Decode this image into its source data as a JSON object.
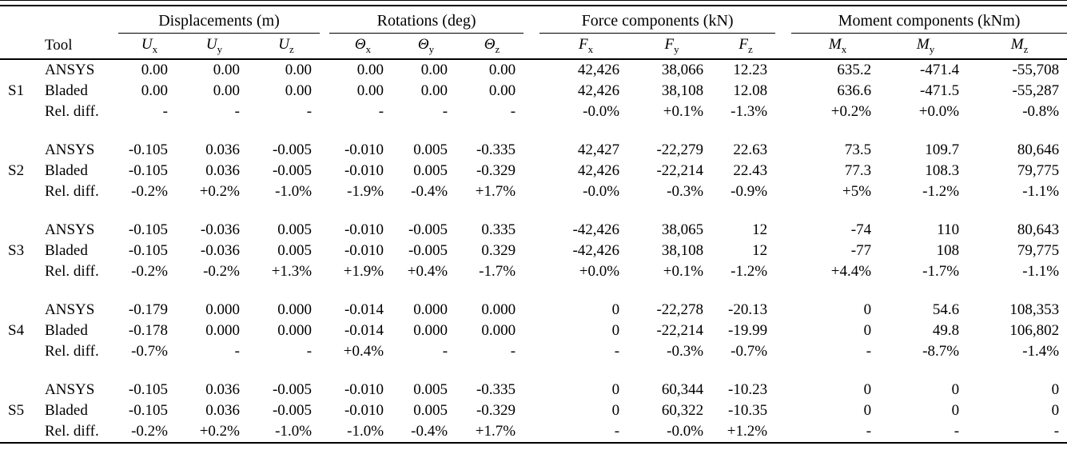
{
  "page": {
    "background_color": "#ffffff",
    "text_color": "#000000",
    "rule_color": "#000000"
  },
  "table": {
    "tool_header": "Tool",
    "col_groups": [
      {
        "label": "Displacements (m)"
      },
      {
        "label": "Rotations (deg)"
      },
      {
        "label": "Force components (kN)"
      },
      {
        "label": "Moment components (kNm)"
      }
    ],
    "sub_headers": [
      {
        "name": "u-x",
        "base": "U",
        "sub": "x"
      },
      {
        "name": "u-y",
        "base": "U",
        "sub": "y"
      },
      {
        "name": "u-z",
        "base": "U",
        "sub": "z"
      },
      {
        "name": "theta-x",
        "base": "Θ",
        "sub": "x"
      },
      {
        "name": "theta-y",
        "base": "Θ",
        "sub": "y"
      },
      {
        "name": "theta-z",
        "base": "Θ",
        "sub": "z"
      },
      {
        "name": "f-x",
        "base": "F",
        "sub": "x"
      },
      {
        "name": "f-y",
        "base": "F",
        "sub": "y"
      },
      {
        "name": "f-z",
        "base": "F",
        "sub": "z"
      },
      {
        "name": "m-x",
        "base": "M",
        "sub": "x"
      },
      {
        "name": "m-y",
        "base": "M",
        "sub": "y"
      },
      {
        "name": "m-z",
        "base": "M",
        "sub": "z"
      }
    ],
    "groups": [
      {
        "id": "S1",
        "rows": [
          {
            "tool": "ANSYS",
            "values": [
              "0.00",
              "0.00",
              "0.00",
              "0.00",
              "0.00",
              "0.00",
              "42,426",
              "38,066",
              "12.23",
              "635.2",
              "-471.4",
              "-55,708"
            ]
          },
          {
            "tool": "Bladed",
            "values": [
              "0.00",
              "0.00",
              "0.00",
              "0.00",
              "0.00",
              "0.00",
              "42,426",
              "38,108",
              "12.08",
              "636.6",
              "-471.5",
              "-55,287"
            ]
          },
          {
            "tool": "Rel. diff.",
            "values": [
              "-",
              "-",
              "-",
              "-",
              "-",
              "-",
              "-0.0%",
              "+0.1%",
              "-1.3%",
              "+0.2%",
              "+0.0%",
              "-0.8%"
            ]
          }
        ]
      },
      {
        "id": "S2",
        "rows": [
          {
            "tool": "ANSYS",
            "values": [
              "-0.105",
              "0.036",
              "-0.005",
              "-0.010",
              "0.005",
              "-0.335",
              "42,427",
              "-22,279",
              "22.63",
              "73.5",
              "109.7",
              "80,646"
            ]
          },
          {
            "tool": "Bladed",
            "values": [
              "-0.105",
              "0.036",
              "-0.005",
              "-0.010",
              "0.005",
              "-0.329",
              "42,426",
              "-22,214",
              "22.43",
              "77.3",
              "108.3",
              "79,775"
            ]
          },
          {
            "tool": "Rel. diff.",
            "values": [
              "-0.2%",
              "+0.2%",
              "-1.0%",
              "-1.9%",
              "-0.4%",
              "+1.7%",
              "-0.0%",
              "-0.3%",
              "-0.9%",
              "+5%",
              "-1.2%",
              "-1.1%"
            ]
          }
        ]
      },
      {
        "id": "S3",
        "rows": [
          {
            "tool": "ANSYS",
            "values": [
              "-0.105",
              "-0.036",
              "0.005",
              "-0.010",
              "-0.005",
              "0.335",
              "-42,426",
              "38,065",
              "12",
              "-74",
              "110",
              "80,643"
            ]
          },
          {
            "tool": "Bladed",
            "values": [
              "-0.105",
              "-0.036",
              "0.005",
              "-0.010",
              "-0.005",
              "0.329",
              "-42,426",
              "38,108",
              "12",
              "-77",
              "108",
              "79,775"
            ]
          },
          {
            "tool": "Rel. diff.",
            "values": [
              "-0.2%",
              "-0.2%",
              "+1.3%",
              "+1.9%",
              "+0.4%",
              "-1.7%",
              "+0.0%",
              "+0.1%",
              "-1.2%",
              "+4.4%",
              "-1.7%",
              "-1.1%"
            ]
          }
        ]
      },
      {
        "id": "S4",
        "rows": [
          {
            "tool": "ANSYS",
            "values": [
              "-0.179",
              "0.000",
              "0.000",
              "-0.014",
              "0.000",
              "0.000",
              "0",
              "-22,278",
              "-20.13",
              "0",
              "54.6",
              "108,353"
            ]
          },
          {
            "tool": "Bladed",
            "values": [
              "-0.178",
              "0.000",
              "0.000",
              "-0.014",
              "0.000",
              "0.000",
              "0",
              "-22,214",
              "-19.99",
              "0",
              "49.8",
              "106,802"
            ]
          },
          {
            "tool": "Rel. diff.",
            "values": [
              "-0.7%",
              "-",
              "-",
              "+0.4%",
              "-",
              "-",
              "-",
              "-0.3%",
              "-0.7%",
              "-",
              "-8.7%",
              "-1.4%"
            ]
          }
        ]
      },
      {
        "id": "S5",
        "rows": [
          {
            "tool": "ANSYS",
            "values": [
              "-0.105",
              "0.036",
              "-0.005",
              "-0.010",
              "0.005",
              "-0.335",
              "0",
              "60,344",
              "-10.23",
              "0",
              "0",
              "0"
            ]
          },
          {
            "tool": "Bladed",
            "values": [
              "-0.105",
              "0.036",
              "-0.005",
              "-0.010",
              "0.005",
              "-0.329",
              "0",
              "60,322",
              "-10.35",
              "0",
              "0",
              "0"
            ]
          },
          {
            "tool": "Rel. diff.",
            "values": [
              "-0.2%",
              "+0.2%",
              "-1.0%",
              "-1.0%",
              "-0.4%",
              "+1.7%",
              "-",
              "-0.0%",
              "+1.2%",
              "-",
              "-",
              "-"
            ]
          }
        ]
      }
    ]
  }
}
